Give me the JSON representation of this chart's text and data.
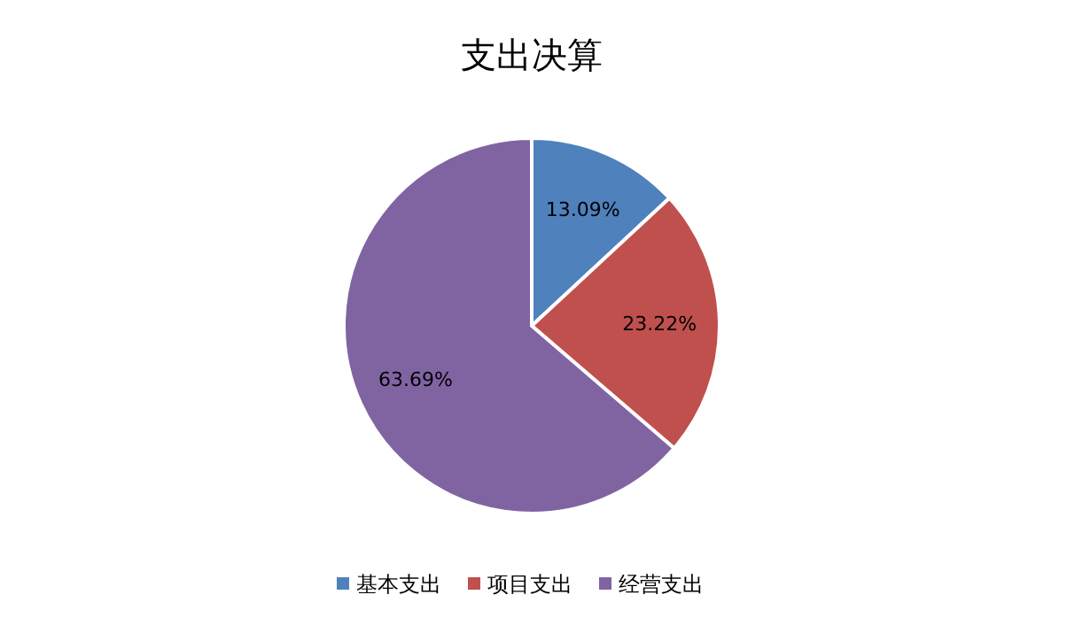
{
  "chart_data": {
    "type": "pie",
    "title": "支出决算",
    "categories": [
      "基本支出",
      "项目支出",
      "经营支出"
    ],
    "values": [
      13.09,
      23.22,
      63.69
    ],
    "colors": [
      "#4f81bd",
      "#c0504d",
      "#8064a2"
    ],
    "value_labels": [
      "13.09%",
      "23.22%",
      "63.69%"
    ],
    "legend": "bottom"
  }
}
